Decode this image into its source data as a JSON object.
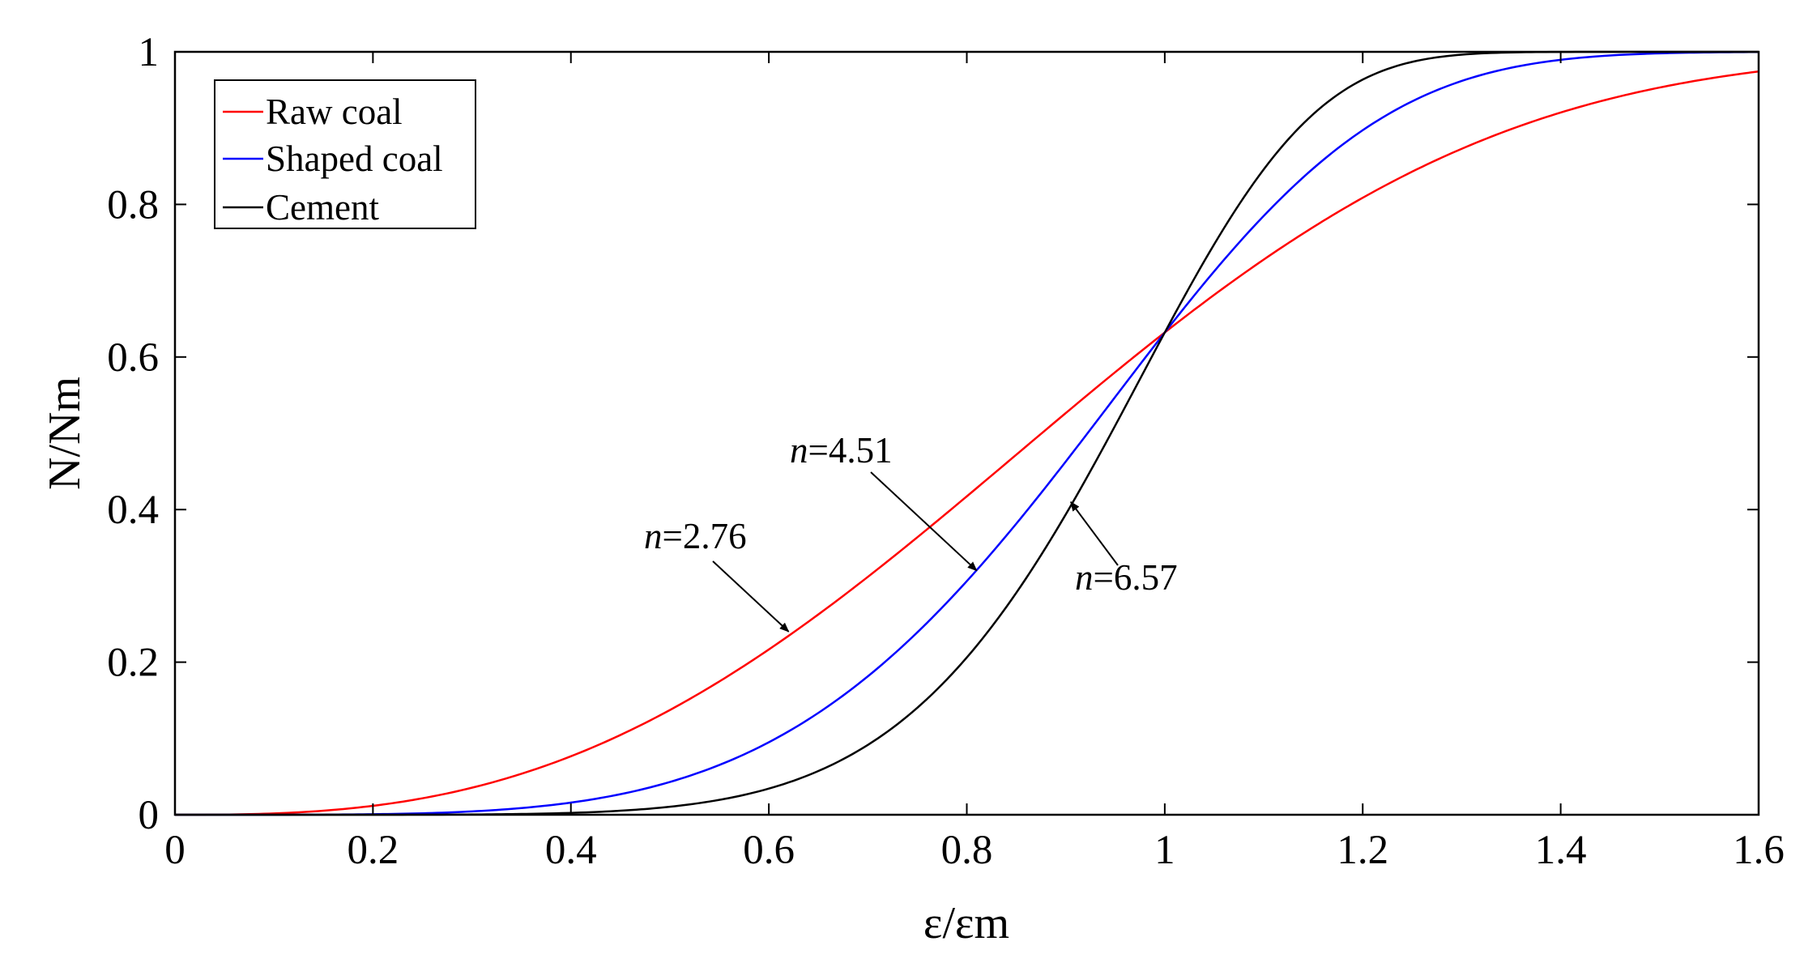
{
  "chart_data": {
    "type": "line",
    "title": "",
    "xlabel": "ε/εm",
    "ylabel": "N/Nm",
    "xlim": [
      0,
      1.6
    ],
    "ylim": [
      0,
      1
    ],
    "grid": false,
    "legend_position": "top-left",
    "x_ticks": [
      "0",
      "0.2",
      "0.4",
      "0.6",
      "0.8",
      "1",
      "1.2",
      "1.4",
      "1.6"
    ],
    "y_ticks": [
      "0",
      "0.2",
      "0.4",
      "0.6",
      "0.8",
      "1"
    ],
    "x": [
      0,
      0.1,
      0.2,
      0.3,
      0.4,
      0.5,
      0.6,
      0.7,
      0.8,
      0.9,
      1.0,
      1.1,
      1.2,
      1.3,
      1.4,
      1.5,
      1.6
    ],
    "series": [
      {
        "name": "Raw coal",
        "color": "#ff0000",
        "n": 2.76,
        "values": [
          0,
          0.002,
          0.012,
          0.035,
          0.077,
          0.137,
          0.216,
          0.307,
          0.41,
          0.515,
          0.632,
          0.722,
          0.806,
          0.872,
          0.92,
          0.953,
          0.975
        ]
      },
      {
        "name": "Shaped coal",
        "color": "#0000ff",
        "n": 4.51,
        "values": [
          0,
          0,
          0.001,
          0.004,
          0.016,
          0.043,
          0.097,
          0.186,
          0.307,
          0.454,
          0.632,
          0.764,
          0.879,
          0.944,
          0.978,
          0.992,
          0.998
        ]
      },
      {
        "name": "Cement",
        "color": "#000000",
        "n": 6.57,
        "values": [
          0,
          0,
          0,
          0,
          0.002,
          0.01,
          0.034,
          0.091,
          0.198,
          0.36,
          0.632,
          0.858,
          0.968,
          0.996,
          1.0,
          1.0,
          1.0
        ]
      }
    ],
    "annotations": [
      {
        "italic": "n",
        "rest": "=2.76",
        "x": 0.62,
        "y": 0.24
      },
      {
        "italic": "n",
        "rest": "=4.51",
        "x": 0.81,
        "y": 0.32
      },
      {
        "italic": "n",
        "rest": "=6.57",
        "x": 0.905,
        "y": 0.41
      }
    ]
  }
}
